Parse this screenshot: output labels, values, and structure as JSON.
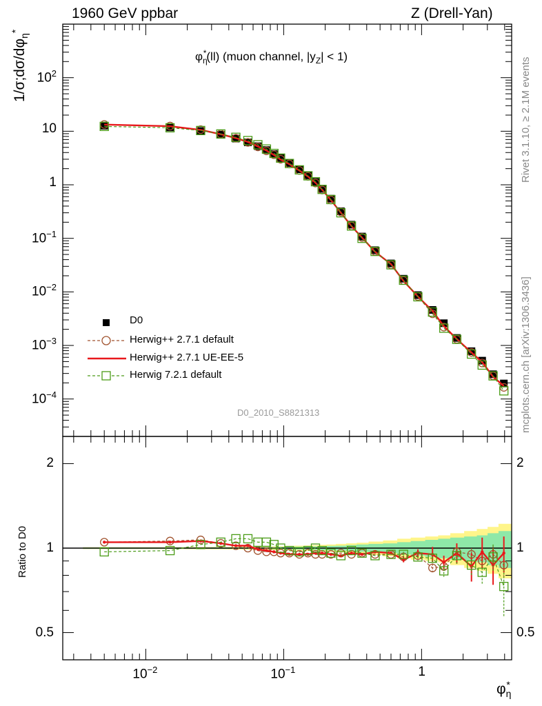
{
  "header": {
    "left": "1960 GeV ppbar",
    "right": "Z (Drell-Yan)"
  },
  "side_labels": {
    "rivet": "Rivet 3.1.10, ≥ 2.1M events",
    "mcplots": "mcplots.cern.ch [arXiv:1306.3436]"
  },
  "chart_data": [
    {
      "type": "scatter",
      "title": "φ*η(ll) (muon channel, |yZ| < 1)",
      "title_parts": {
        "phi": "φ",
        "sup": "*",
        "sub": "η",
        "rest": "(ll) (muon channel, |y",
        "sub2": "Z",
        "end": "| < 1)"
      },
      "analysis_id": "D0_2010_S8821313",
      "ylabel": "1/σ;dσ/dφ*η",
      "xlabel": "φ*η",
      "xscale": "log",
      "yscale": "log",
      "xlim": [
        0.0025,
        4.5
      ],
      "ylim": [
        2e-05,
        1000
      ],
      "yticks": [
        {
          "v": 0.0001,
          "m": "10",
          "e": "−4"
        },
        {
          "v": 0.001,
          "m": "10",
          "e": "−3"
        },
        {
          "v": 0.01,
          "m": "10",
          "e": "−2"
        },
        {
          "v": 0.1,
          "m": "10",
          "e": "−1"
        },
        {
          "v": 1,
          "m": "1",
          "e": ""
        },
        {
          "v": 10,
          "m": "10",
          "e": ""
        },
        {
          "v": 100,
          "m": "10",
          "e": "2"
        }
      ],
      "x": [
        0.005,
        0.015,
        0.025,
        0.035,
        0.045,
        0.055,
        0.065,
        0.075,
        0.085,
        0.095,
        0.11,
        0.13,
        0.15,
        0.17,
        0.19,
        0.22,
        0.26,
        0.31,
        0.37,
        0.46,
        0.6,
        0.74,
        0.94,
        1.2,
        1.45,
        1.8,
        2.3,
        2.75,
        3.3,
        3.95
      ],
      "series": [
        {
          "name": "D0",
          "marker": "square-filled",
          "color": "#000000",
          "values": [
            12.7,
            11.8,
            10.1,
            8.6,
            7.3,
            6.2,
            5.25,
            4.45,
            3.75,
            3.15,
            2.55,
            1.95,
            1.5,
            1.13,
            0.84,
            0.55,
            0.32,
            0.18,
            0.108,
            0.06,
            0.034,
            0.0176,
            0.0087,
            0.0046,
            0.0026,
            0.00138,
            0.00078,
            0.00052,
            0.00029,
            0.000195
          ]
        },
        {
          "name": "Herwig++ 2.7.1 default",
          "marker": "circle-open",
          "color": "#a0522d",
          "values": [
            13.4,
            12.5,
            10.7,
            8.9,
            7.4,
            6.2,
            5.1,
            4.3,
            3.65,
            3.0,
            2.45,
            1.85,
            1.44,
            1.08,
            0.8,
            0.52,
            0.31,
            0.17,
            0.104,
            0.057,
            0.032,
            0.0163,
            0.0082,
            0.0039,
            0.0022,
            0.0013,
            0.00074,
            0.00047,
            0.00027,
            0.000165
          ]
        },
        {
          "name": "Herwig++ 2.7.1 UE-EE-5",
          "marker": "line",
          "color": "#e8181b",
          "values": [
            13.3,
            12.4,
            10.6,
            8.8,
            7.45,
            6.3,
            5.2,
            4.35,
            3.6,
            2.95,
            2.42,
            1.85,
            1.43,
            1.09,
            0.81,
            0.52,
            0.3,
            0.17,
            0.103,
            0.056,
            0.033,
            0.016,
            0.0082,
            0.0044,
            0.0023,
            0.00132,
            0.00074,
            0.00049,
            0.00026,
            0.000175
          ]
        },
        {
          "name": "Herwig 7.2.1 default",
          "marker": "square-open",
          "color": "#4a9b16",
          "values": [
            12.3,
            11.6,
            10.3,
            8.9,
            7.7,
            6.7,
            5.6,
            4.65,
            3.85,
            3.15,
            2.5,
            1.9,
            1.47,
            1.14,
            0.82,
            0.53,
            0.3,
            0.17,
            0.1,
            0.057,
            0.032,
            0.0165,
            0.0081,
            0.0042,
            0.0021,
            0.0013,
            0.00069,
            0.00043,
            0.00027,
            0.000142
          ]
        }
      ]
    },
    {
      "type": "scatter",
      "ylabel": "Ratio to D0",
      "xlabel": "φ*η",
      "xscale": "log",
      "yscale": "log",
      "xlim": [
        0.0025,
        4.5
      ],
      "ylim": [
        0.4,
        2.5
      ],
      "yticks": [
        0.5,
        1,
        2
      ],
      "xticks": [
        {
          "v": 0.01,
          "m": "10",
          "e": "−2"
        },
        {
          "v": 0.1,
          "m": "10",
          "e": "−1"
        },
        {
          "v": 1,
          "m": "1",
          "e": ""
        }
      ],
      "x": [
        0.005,
        0.015,
        0.025,
        0.035,
        0.045,
        0.055,
        0.065,
        0.075,
        0.085,
        0.095,
        0.11,
        0.13,
        0.15,
        0.17,
        0.19,
        0.22,
        0.26,
        0.31,
        0.37,
        0.46,
        0.6,
        0.74,
        0.94,
        1.2,
        1.45,
        1.8,
        2.3,
        2.75,
        3.3,
        3.95
      ],
      "band_inner": [
        0.005,
        0.005,
        0.005,
        0.006,
        0.006,
        0.007,
        0.008,
        0.008,
        0.009,
        0.01,
        0.011,
        0.012,
        0.013,
        0.014,
        0.016,
        0.018,
        0.02,
        0.025,
        0.03,
        0.035,
        0.04,
        0.05,
        0.06,
        0.07,
        0.08,
        0.09,
        0.1,
        0.11,
        0.13,
        0.15
      ],
      "band_outer": [
        0.008,
        0.008,
        0.009,
        0.01,
        0.011,
        0.012,
        0.013,
        0.014,
        0.015,
        0.016,
        0.018,
        0.02,
        0.022,
        0.024,
        0.027,
        0.03,
        0.035,
        0.04,
        0.045,
        0.055,
        0.065,
        0.08,
        0.09,
        0.1,
        0.11,
        0.13,
        0.15,
        0.17,
        0.19,
        0.22
      ],
      "series": [
        {
          "name": "Herwig++ 2.7.1 default",
          "marker": "circle-open",
          "color": "#a0522d",
          "values": [
            1.05,
            1.06,
            1.07,
            1.04,
            1.02,
            1.0,
            0.98,
            0.97,
            0.97,
            0.96,
            0.96,
            0.95,
            0.96,
            0.95,
            0.95,
            0.95,
            0.96,
            0.95,
            0.96,
            0.95,
            0.95,
            0.93,
            0.94,
            0.85,
            0.86,
            0.97,
            0.95,
            0.9,
            0.95,
            0.87
          ],
          "errors": [
            0,
            0,
            0,
            0,
            0,
            0,
            0,
            0,
            0,
            0,
            0,
            0,
            0,
            0,
            0,
            0,
            0,
            0,
            0,
            0,
            0.01,
            0.01,
            0.02,
            0.03,
            0.03,
            0.04,
            0.05,
            0.06,
            0.07,
            0.08
          ]
        },
        {
          "name": "Herwig++ 2.7.1 UE-EE-5",
          "marker": "line",
          "color": "#e8181b",
          "values": [
            1.05,
            1.05,
            1.06,
            1.04,
            1.02,
            1.02,
            0.99,
            0.98,
            0.97,
            0.96,
            0.95,
            0.95,
            0.95,
            0.96,
            0.96,
            0.95,
            0.94,
            0.96,
            0.95,
            0.97,
            0.96,
            0.91,
            0.96,
            0.95,
            0.89,
            0.96,
            0.86,
            0.97,
            0.87,
            0.96
          ],
          "errors": [
            0,
            0,
            0,
            0,
            0,
            0,
            0,
            0,
            0,
            0,
            0,
            0,
            0,
            0,
            0,
            0,
            0,
            0,
            0,
            0,
            0.01,
            0.02,
            0.03,
            0.06,
            0.05,
            0.08,
            0.1,
            0.12,
            0.13,
            0.14
          ]
        },
        {
          "name": "Herwig 7.2.1 default",
          "marker": "square-open",
          "color": "#4a9b16",
          "values": [
            0.97,
            0.98,
            1.03,
            1.05,
            1.08,
            1.08,
            1.05,
            1.05,
            1.03,
            1.0,
            0.98,
            0.97,
            0.98,
            1.0,
            0.98,
            0.96,
            0.94,
            0.98,
            0.96,
            0.94,
            0.95,
            0.95,
            0.93,
            0.92,
            0.83,
            0.94,
            0.87,
            0.82,
            0.93,
            0.73
          ],
          "errors": [
            0,
            0,
            0,
            0,
            0,
            0,
            0,
            0,
            0,
            0,
            0,
            0,
            0,
            0,
            0,
            0,
            0,
            0,
            0,
            0,
            0.01,
            0.02,
            0.03,
            0.04,
            0.04,
            0.06,
            0.07,
            0.08,
            0.1,
            0.16
          ]
        }
      ]
    }
  ],
  "colors": {
    "band_inner": "#8ee8a8",
    "band_outer": "#fff58a",
    "ref_line": "#000000"
  }
}
